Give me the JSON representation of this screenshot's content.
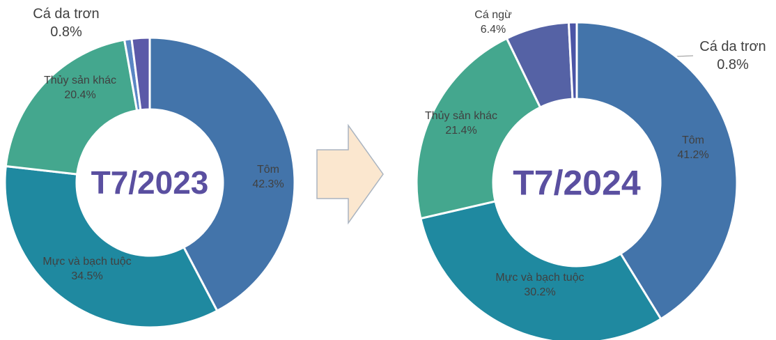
{
  "chart_data": [
    {
      "type": "donut",
      "title": "T7/2023",
      "categories": [
        "Tôm",
        "Mực và bạch tuộc",
        "Thủy sản khác",
        "Cá da trơn",
        null
      ],
      "values": [
        42.3,
        34.5,
        20.4,
        0.8,
        2.0
      ],
      "value_labels": [
        "42.3%",
        "34.5%",
        "20.4%",
        "0.8%",
        null
      ],
      "colors": [
        "#4374aa",
        "#1f89a0",
        "#44a78e",
        "#5a86c4",
        "#5b59a8"
      ]
    },
    {
      "type": "donut",
      "title": "T7/2024",
      "categories": [
        "Tôm",
        "Mực và bạch tuộc",
        "Thủy sản khác",
        "Cá ngừ",
        "Cá da trơn"
      ],
      "values": [
        41.2,
        30.2,
        21.4,
        6.4,
        0.8
      ],
      "value_labels": [
        "41.2%",
        "30.2%",
        "21.4%",
        "6.4%",
        "0.8%"
      ],
      "colors": [
        "#4374aa",
        "#1f89a0",
        "#44a78e",
        "#5562a5",
        "#4b55a6"
      ]
    }
  ]
}
